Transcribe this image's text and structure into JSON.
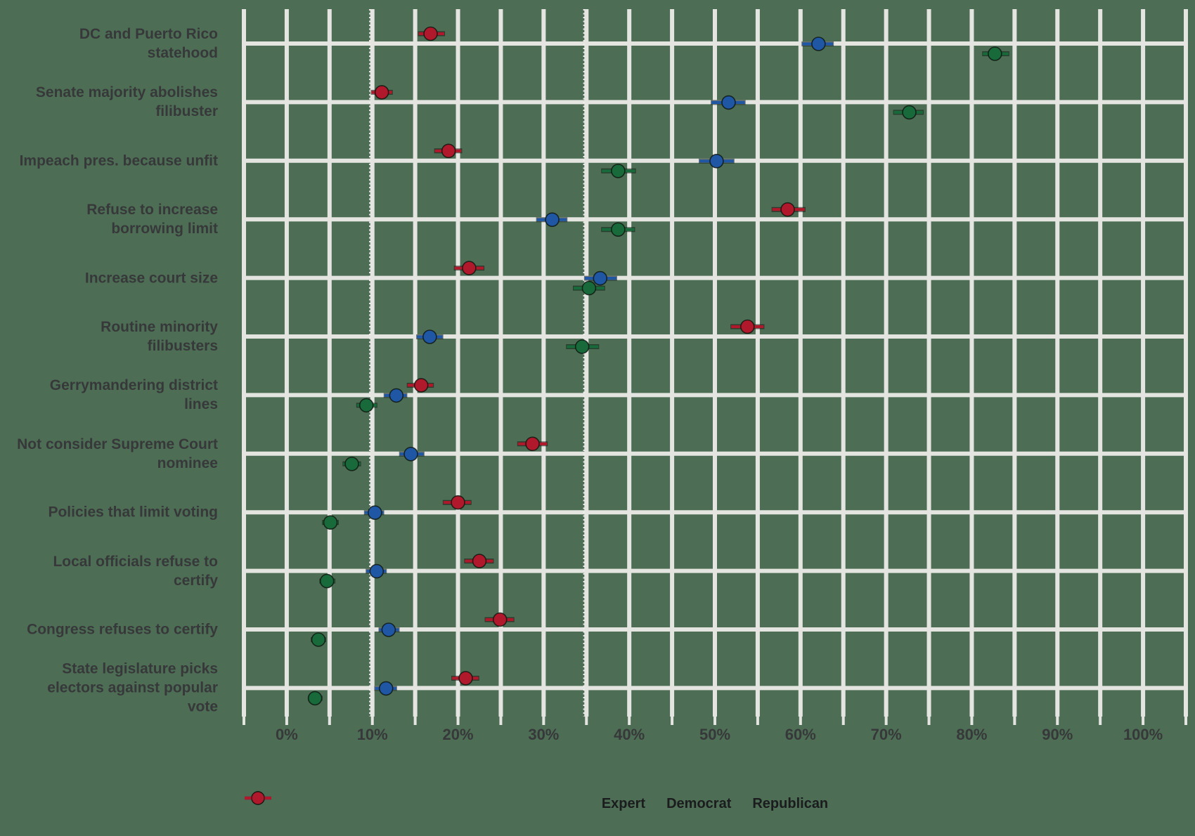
{
  "chart_data": {
    "type": "scatter",
    "subtype": "dot-whisker point estimates with confidence intervals, categorical y-axis",
    "title": "",
    "xlabel": "",
    "ylabel": "",
    "x_axis": {
      "unit": "percent",
      "range": [
        -5,
        105
      ],
      "gridline_step": 5,
      "tick_values": [
        0,
        10,
        20,
        30,
        40,
        50,
        60,
        70,
        80,
        90,
        100
      ],
      "tick_labels": [
        "0%",
        "10%",
        "20%",
        "30%",
        "40%",
        "50%",
        "60%",
        "70%",
        "80%",
        "90%",
        "100%"
      ]
    },
    "reference_lines_dotted_x": [
      9.7,
      34.7
    ],
    "grid": "on",
    "legend_position": "bottom-center",
    "categories": [
      {
        "key": "dc-pr-statehood",
        "lines": [
          "DC and Puerto Rico",
          "statehood"
        ]
      },
      {
        "key": "abolish-filibuster",
        "lines": [
          "Senate majority abolishes",
          "filibuster"
        ]
      },
      {
        "key": "impeach-unfit",
        "lines": [
          "Impeach pres. because unfit"
        ]
      },
      {
        "key": "borrowing-limit",
        "lines": [
          "Refuse to increase",
          "borrowing limit"
        ]
      },
      {
        "key": "court-size",
        "lines": [
          "Increase court size"
        ]
      },
      {
        "key": "minority-filibusters",
        "lines": [
          "Routine minority",
          "filibusters"
        ]
      },
      {
        "key": "gerrymandering",
        "lines": [
          "Gerrymandering district",
          "lines"
        ]
      },
      {
        "key": "scotus-nominee",
        "lines": [
          "Not consider Supreme Court",
          "nominee"
        ]
      },
      {
        "key": "limit-voting",
        "lines": [
          "Policies that limit voting"
        ]
      },
      {
        "key": "local-refuse-certify",
        "lines": [
          "Local officials refuse to",
          "certify"
        ]
      },
      {
        "key": "congress-refuse-certify",
        "lines": [
          "Congress refuses to certify"
        ]
      },
      {
        "key": "legislature-picks-electors",
        "lines": [
          "State legislature picks",
          "electors against popular",
          "vote"
        ]
      }
    ],
    "series": [
      {
        "name": "Expert",
        "color": "#186a3b",
        "values": [
          82.7,
          72.7,
          38.7,
          38.7,
          35.3,
          34.5,
          9.3,
          7.6,
          5.1,
          4.7,
          3.7,
          3.3
        ],
        "ci_low": [
          81.3,
          70.9,
          36.8,
          36.8,
          33.5,
          32.7,
          8.2,
          6.6,
          4.2,
          3.9,
          2.9,
          2.6
        ],
        "ci_high": [
          84.3,
          74.3,
          40.7,
          40.6,
          37.1,
          36.4,
          10.5,
          8.6,
          6.0,
          5.6,
          4.5,
          4.1
        ]
      },
      {
        "name": "Democrat",
        "color": "#1f57a4",
        "values": [
          62.1,
          51.6,
          50.2,
          31.0,
          36.6,
          16.7,
          12.8,
          14.5,
          10.3,
          10.5,
          11.9,
          11.6
        ],
        "ci_low": [
          60.2,
          49.6,
          48.2,
          29.2,
          34.8,
          15.2,
          11.4,
          13.2,
          9.1,
          9.3,
          10.8,
          10.3
        ],
        "ci_high": [
          63.8,
          53.5,
          52.2,
          32.7,
          38.5,
          18.2,
          14.0,
          16.0,
          11.3,
          11.6,
          13.1,
          12.8
        ]
      },
      {
        "name": "Republican",
        "color": "#b0182b",
        "values": [
          16.8,
          11.1,
          18.9,
          58.5,
          21.3,
          53.8,
          15.7,
          28.7,
          20.0,
          22.5,
          24.9,
          20.9
        ],
        "ci_low": [
          15.4,
          9.9,
          17.3,
          56.7,
          19.6,
          51.9,
          14.1,
          27.0,
          18.3,
          20.8,
          23.2,
          19.3
        ],
        "ci_high": [
          18.4,
          12.3,
          20.4,
          60.5,
          23.0,
          55.7,
          17.1,
          30.4,
          21.5,
          24.1,
          26.5,
          22.4
        ]
      }
    ]
  },
  "legend": {
    "items": [
      {
        "label": "Expert",
        "color": "#186a3b"
      },
      {
        "label": "Democrat",
        "color": "#1f57a4"
      },
      {
        "label": "Republican",
        "color": "#b0182b"
      }
    ]
  },
  "colors": {
    "background": "#4d6e55",
    "gridline": "#e4e5e1",
    "dotted_reference": "#f0f2ee",
    "axis_text": "#37383a",
    "legend_text": "#1b1c1d",
    "marker_outline": "#0c140e"
  }
}
